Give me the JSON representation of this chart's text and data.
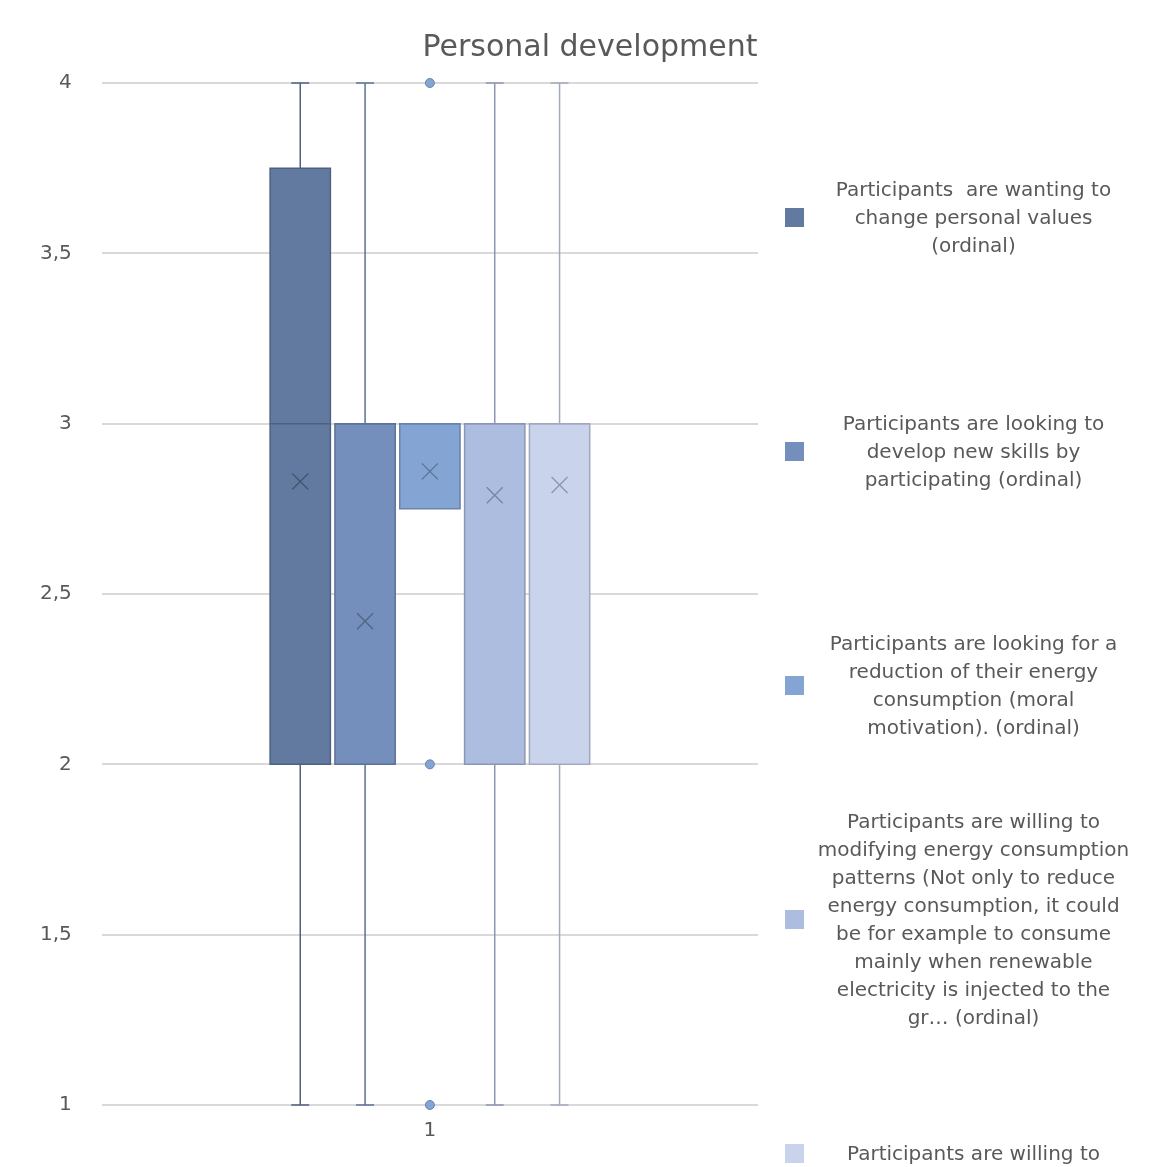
{
  "chart_data": {
    "type": "box",
    "title": "Personal development",
    "categories": [
      "1"
    ],
    "ylim": [
      1,
      4
    ],
    "yticks": [
      1,
      {
        "value": 1.5,
        "label": "1,5"
      },
      2,
      {
        "value": 2.5,
        "label": "2,5"
      },
      3,
      {
        "value": 3.5,
        "label": "3,5"
      },
      4
    ],
    "grid": "y",
    "legend": "right",
    "marker": "cross",
    "series": [
      {
        "name": "Participants  are wanting to change personal values (ordinal)",
        "color": "#627aa0",
        "boxes": [
          {
            "low": 1,
            "q1": 2,
            "median": 3,
            "q3": 3.75,
            "high": 4,
            "mean": 2.83
          }
        ]
      },
      {
        "name": "Participants are looking to develop new skills by participating (ordinal)",
        "color": "#748fbb",
        "boxes": [
          {
            "low": 1,
            "q1": 2,
            "median": 3,
            "q3": 3,
            "high": 4,
            "mean": 2.42
          }
        ]
      },
      {
        "name": "Participants are looking for a reduction of their energy consumption (moral motivation). (ordinal)",
        "color": "#84a4d4",
        "boxes": [
          {
            "low": 2.75,
            "q1": 2.75,
            "median": 3,
            "q3": 3,
            "high": 3,
            "mean": 2.86,
            "outliers": [
              4,
              2,
              1
            ]
          }
        ]
      },
      {
        "name": "Participants are willing to modifying energy consumption patterns (Not only to reduce energy consumption, it could be for example to consume mainly when renewable electricity is injected to the gr… (ordinal)",
        "color": "#adbde0",
        "boxes": [
          {
            "low": 1,
            "q1": 2,
            "median": 3,
            "q3": 3,
            "high": 4,
            "mean": 2.79
          }
        ]
      },
      {
        "name": "Participants are willing to",
        "color": "#c9d4ec",
        "boxes": [
          {
            "low": 1,
            "q1": 2,
            "median": 3,
            "q3": 3,
            "high": 4,
            "mean": 2.82
          }
        ]
      }
    ]
  }
}
